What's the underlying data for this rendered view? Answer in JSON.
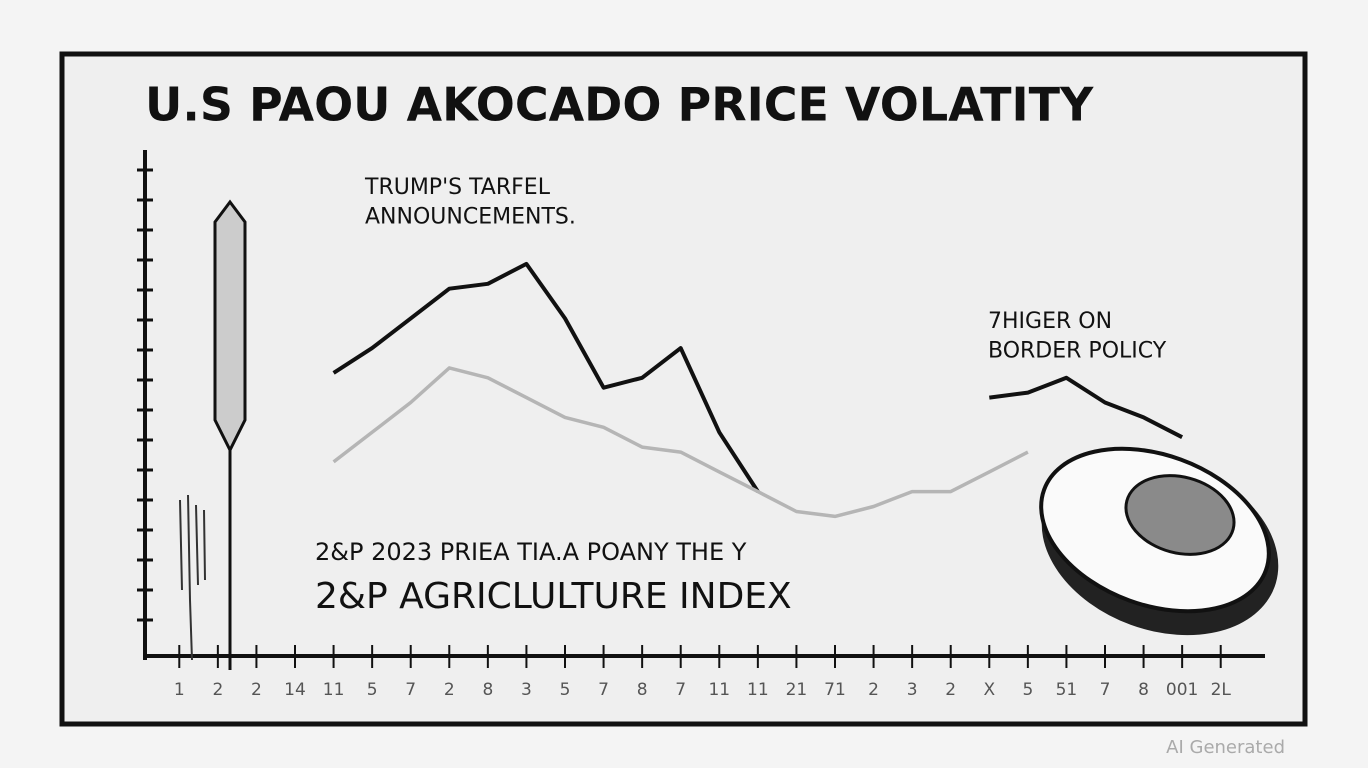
{
  "chart_data": {
    "type": "line",
    "title": "U.S PAOU  AKOCADO PRICE VOLATITY",
    "annotations": [
      {
        "lines": [
          "TRUMP'S TARFEL",
          "ANNOUNCEMENTS."
        ]
      },
      {
        "lines": [
          "7HIGER ON",
          "BORDER POLICY"
        ]
      },
      {
        "lines": [
          "2&P 2023 PRIEA TIA.A POANY THE Y"
        ]
      },
      {
        "lines": [
          "2&P AGRICLULTURE INDEX"
        ]
      }
    ],
    "watermark": "AI Generated",
    "categories": [
      "1",
      "2",
      "2",
      "14",
      "11",
      "5",
      "7",
      "2",
      "8",
      "3",
      "5",
      "7",
      "8",
      "7",
      "11",
      "11",
      "21",
      "71",
      "2",
      "3",
      "2",
      "X",
      "5",
      "51",
      "7",
      "8",
      "001",
      "2L"
    ],
    "ylim": [
      0,
      100
    ],
    "series": [
      {
        "color": "#111111",
        "values": [
          null,
          null,
          null,
          null,
          57,
          62,
          68,
          74,
          75,
          79,
          68,
          54,
          56,
          62,
          45,
          33,
          null,
          null,
          null,
          null,
          null,
          52,
          53,
          56,
          51,
          48,
          44,
          null
        ]
      },
      {
        "color": "#b5b5b5",
        "values": [
          null,
          null,
          null,
          null,
          39,
          45,
          51,
          58,
          56,
          52,
          48,
          46,
          42,
          41,
          37,
          33,
          29,
          28,
          30,
          33,
          33,
          37,
          41,
          null,
          null,
          null,
          null,
          null
        ]
      }
    ]
  }
}
